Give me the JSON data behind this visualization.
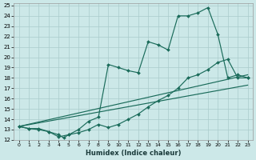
{
  "xlabel": "Humidex (Indice chaleur)",
  "bg_color": "#cce8e8",
  "line_color": "#1a6b5a",
  "grid_color": "#aacccc",
  "xlim": [
    -0.5,
    23.5
  ],
  "ylim": [
    12,
    25.2
  ],
  "yticks": [
    12,
    13,
    14,
    15,
    16,
    17,
    18,
    19,
    20,
    21,
    22,
    23,
    24,
    25
  ],
  "xticks": [
    0,
    1,
    2,
    3,
    4,
    5,
    6,
    7,
    8,
    9,
    10,
    11,
    12,
    13,
    14,
    15,
    16,
    17,
    18,
    19,
    20,
    21,
    22,
    23
  ],
  "curve1_x": [
    0,
    1,
    2,
    3,
    4,
    4.5,
    5,
    6,
    7,
    8,
    9,
    10,
    11,
    12,
    13,
    14,
    15,
    16,
    17,
    18,
    19,
    20,
    21,
    22,
    23
  ],
  "curve1_y": [
    13.3,
    13.1,
    13.1,
    12.8,
    12.5,
    12.2,
    12.5,
    13.0,
    13.8,
    14.2,
    19.3,
    19.0,
    18.7,
    18.5,
    21.5,
    21.2,
    20.7,
    24.0,
    24.0,
    24.3,
    24.8,
    22.2,
    18.0,
    18.3,
    18.0
  ],
  "curve2_x": [
    0,
    1,
    2,
    3,
    4,
    5,
    6,
    7,
    8,
    9,
    10,
    11,
    12,
    13,
    14,
    15,
    16,
    17,
    18,
    19,
    20,
    21,
    22,
    23
  ],
  "curve2_y": [
    13.3,
    13.1,
    13.0,
    12.8,
    12.3,
    12.5,
    12.7,
    13.0,
    13.5,
    13.2,
    13.5,
    14.0,
    14.5,
    15.2,
    15.8,
    16.3,
    17.0,
    18.0,
    18.3,
    18.8,
    19.5,
    19.8,
    18.0,
    18.0
  ],
  "line1_x": [
    0,
    23
  ],
  "line1_y": [
    13.3,
    18.3
  ],
  "line2_x": [
    0,
    23
  ],
  "line2_y": [
    13.3,
    17.3
  ]
}
